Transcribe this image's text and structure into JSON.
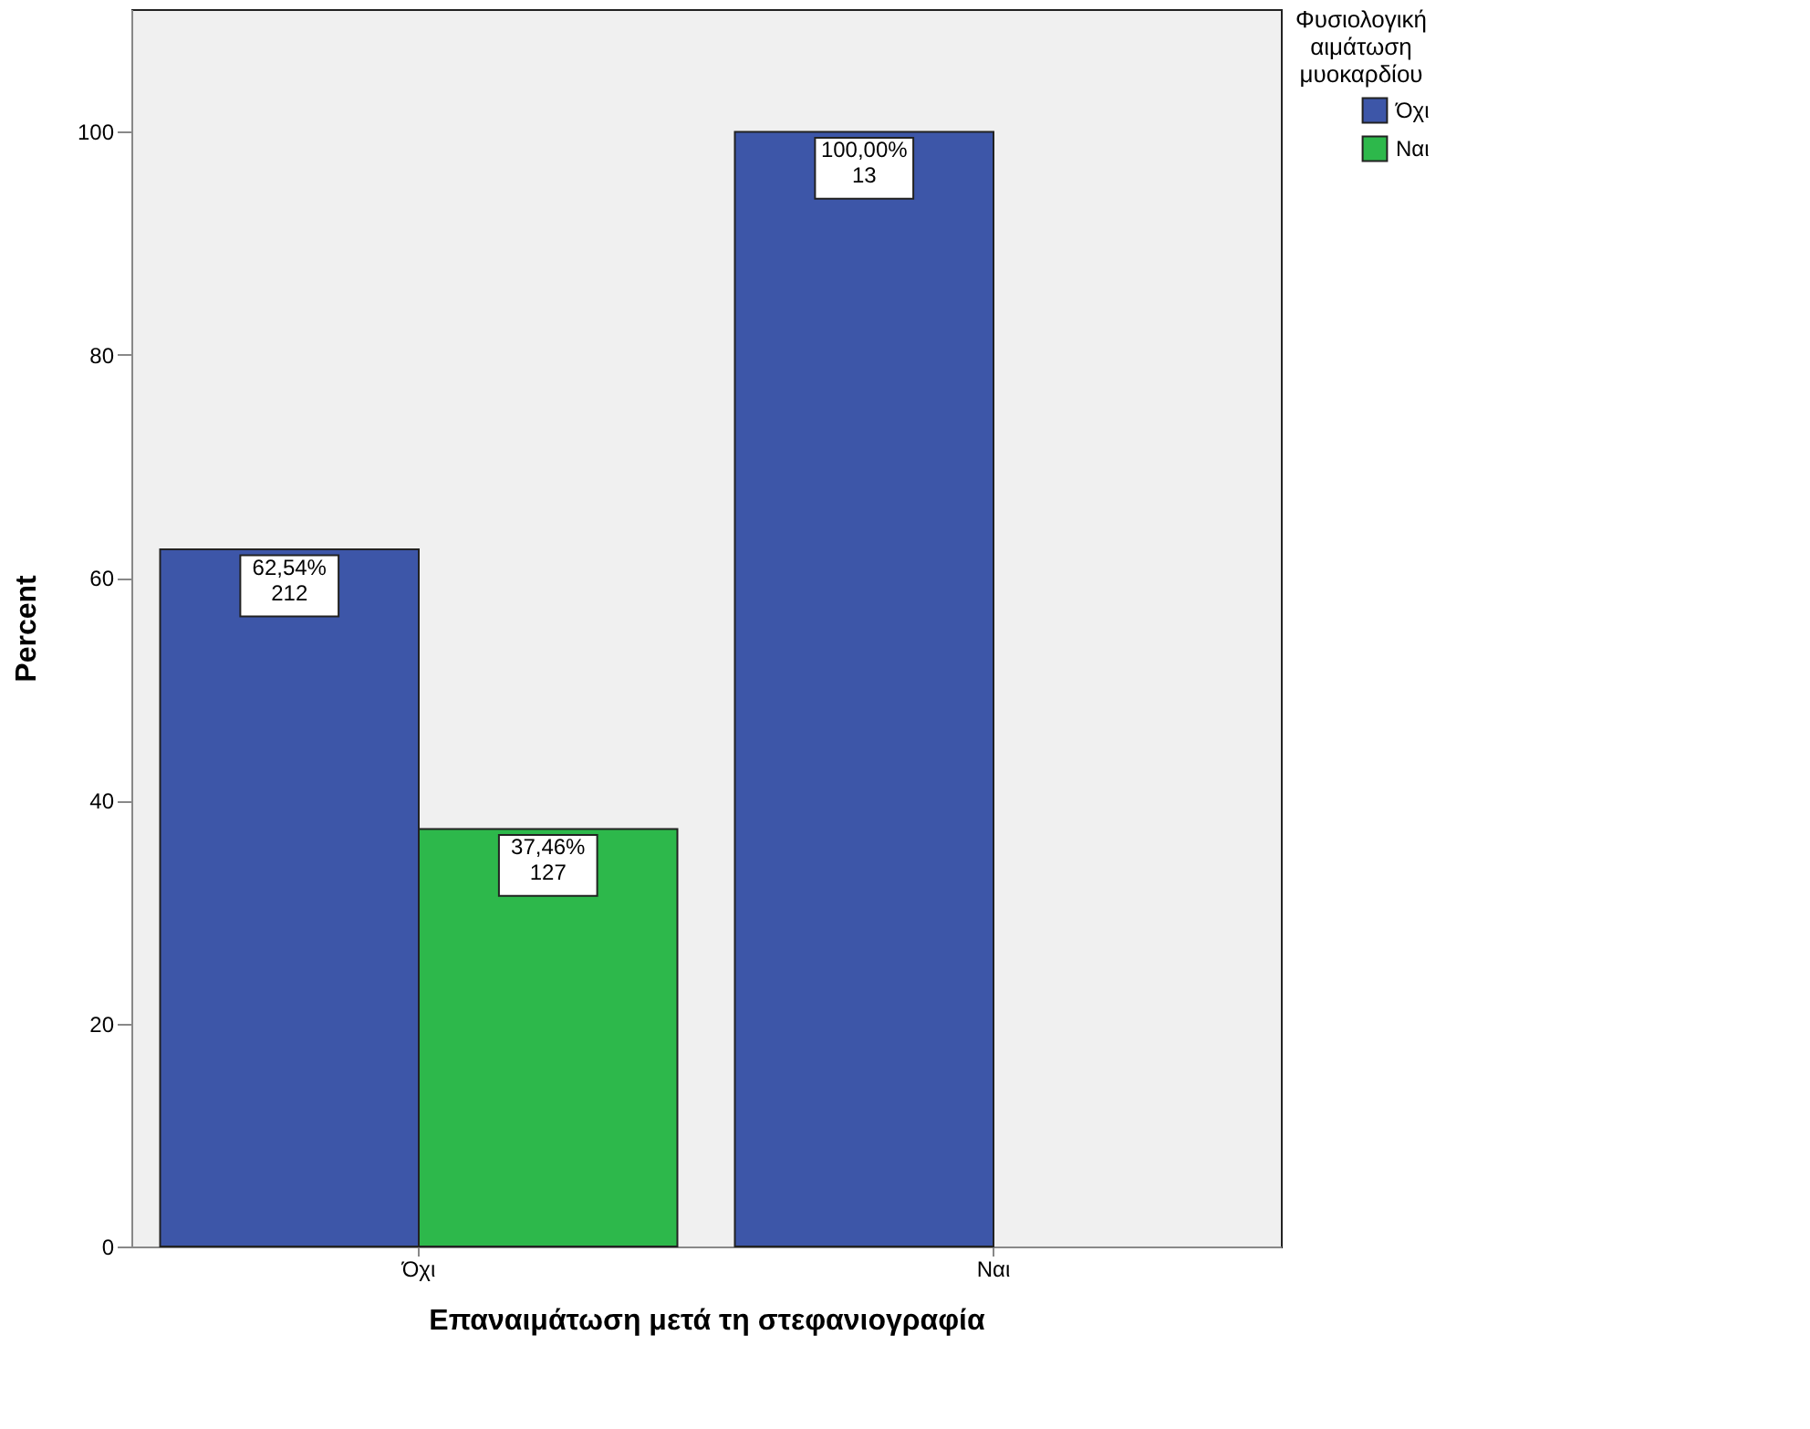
{
  "chart_data": {
    "type": "bar",
    "xlabel": "Επαναιμάτωση μετά τη στεφανιογραφία",
    "ylabel": "Percent",
    "legend_title": "Φυσιολογική αιμάτωση μυοκαρδίου",
    "categories": [
      "Όχι",
      "Ναι"
    ],
    "series": [
      {
        "name": "Όχι",
        "color": "#3d56a8",
        "values": [
          62.54,
          100.0
        ],
        "value_labels": [
          "62,54%\n212",
          "100,00%\n13"
        ]
      },
      {
        "name": "Ναι",
        "color": "#2db84b",
        "values": [
          37.46,
          null
        ],
        "value_labels": [
          "37,46%\n127",
          null
        ]
      }
    ],
    "ylim": [
      0,
      111
    ],
    "yticks": [
      0,
      20,
      40,
      60,
      80,
      100
    ],
    "grid": false,
    "legend": "top right"
  }
}
